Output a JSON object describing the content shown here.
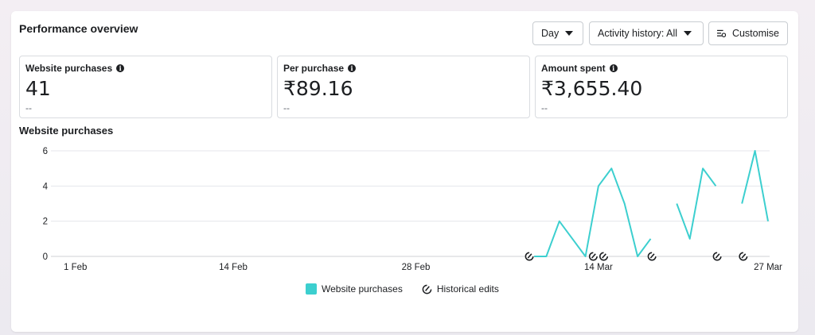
{
  "title": "Performance overview",
  "controls": {
    "day_label": "Day",
    "activity_label": "Activity history: All",
    "customise_label": "Customise"
  },
  "metrics": [
    {
      "label": "Website purchases",
      "value": "41",
      "sub": "--"
    },
    {
      "label": "Per purchase",
      "value": "₹89.16",
      "sub": "--"
    },
    {
      "label": "Amount spent",
      "value": "₹3,655.40",
      "sub": "--"
    }
  ],
  "chart_title": "Website purchases",
  "colors": {
    "series": "#3ccfcf",
    "grid": "#e4e6eb",
    "text": "#1c1e21"
  },
  "chart_data": {
    "type": "line",
    "title": "Website purchases",
    "x_start": "1 Feb",
    "x_tick_labels": [
      "1 Feb",
      "14 Feb",
      "28 Feb",
      "14 Mar",
      "27 Mar"
    ],
    "x_tick_days": [
      0,
      13,
      27,
      41,
      54
    ],
    "y_ticks": [
      0,
      2,
      4,
      6
    ],
    "ylim": [
      0,
      6
    ],
    "grid": true,
    "series": [
      {
        "name": "Website purchases",
        "segments": [
          [
            [
              36,
              0
            ],
            [
              37,
              0
            ],
            [
              38,
              2
            ],
            [
              39,
              1
            ],
            [
              40,
              0
            ],
            [
              41,
              4
            ],
            [
              42,
              5
            ],
            [
              43,
              3
            ],
            [
              44,
              0
            ],
            [
              45,
              1
            ]
          ],
          [
            [
              47,
              3
            ],
            [
              48,
              1
            ],
            [
              49,
              5
            ],
            [
              50,
              4
            ]
          ],
          [
            [
              52,
              3
            ],
            [
              53,
              6
            ],
            [
              54,
              2
            ]
          ]
        ]
      }
    ],
    "historical_edit_days": [
      35.7,
      40.6,
      41.4,
      45.1,
      50.1,
      52.1
    ]
  },
  "legend": {
    "series_label": "Website purchases",
    "edits_label": "Historical edits"
  }
}
